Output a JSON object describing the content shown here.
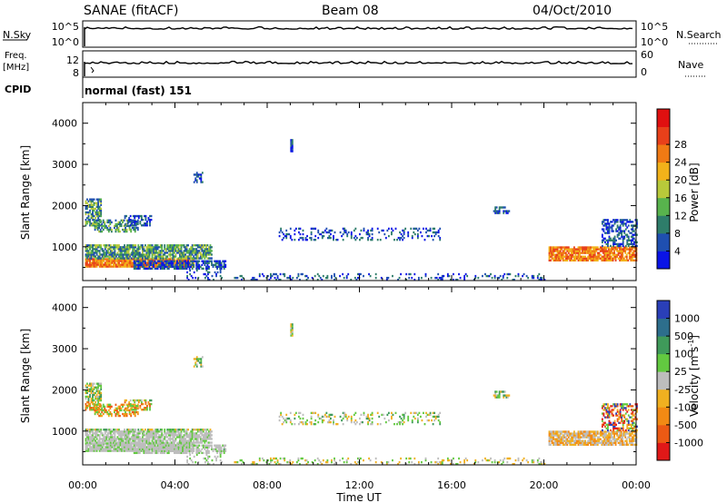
{
  "header": {
    "title": "SANAE (fitACF)",
    "beam": "Beam 08",
    "date": "04/Oct/2010"
  },
  "top_panels": {
    "nsky": {
      "label": "N.Sky",
      "ticks": [
        "10^5",
        "10^0"
      ]
    },
    "nsearch": {
      "label": "N.Search",
      "ticks": [
        "10^5",
        "10^0"
      ]
    },
    "freq": {
      "label_line1": "Freq.",
      "label_line2": "[MHz]",
      "ticks": [
        "12",
        "8"
      ]
    },
    "nave": {
      "label": "Nave",
      "ticks": [
        "60",
        "0"
      ]
    },
    "cpid": {
      "label": "CPID",
      "value": "normal (fast) 151"
    }
  },
  "x_axis": {
    "title": "Time UT",
    "ticks": [
      "00:00",
      "04:00",
      "08:00",
      "12:00",
      "16:00",
      "20:00",
      "00:00"
    ]
  },
  "chart_data": [
    {
      "type": "heatmap",
      "name": "power",
      "xlabel": "Time UT",
      "ylabel": "Slant Range [km]",
      "y_ticks": [
        "1000",
        "2000",
        "3000",
        "4000"
      ],
      "ylim": [
        180,
        4500
      ],
      "xlim_hours": [
        0,
        24
      ],
      "colorbar": {
        "title": "Power [dB]",
        "ticks": [
          "4",
          "8",
          "12",
          "16",
          "20",
          "24",
          "28"
        ],
        "colors": [
          "#0a14e6",
          "#1f4fb0",
          "#2e7d6a",
          "#58b34d",
          "#b8c93a",
          "#f2b21a",
          "#f07a14",
          "#e8401a",
          "#e01010"
        ]
      }
    },
    {
      "type": "heatmap",
      "name": "velocity",
      "xlabel": "Time UT",
      "ylabel": "Slant Range [km]",
      "y_ticks": [
        "1000",
        "2000",
        "3000",
        "4000"
      ],
      "ylim": [
        180,
        4500
      ],
      "xlim_hours": [
        0,
        24
      ],
      "colorbar": {
        "title": "Velocity [m s",
        "title_sup": "-1",
        "title_end": "]",
        "ticks": [
          "1000",
          "500",
          "100",
          "25",
          "-25",
          "-100",
          "-500",
          "-1000"
        ],
        "colors": [
          "#2a3fb8",
          "#2d6e8c",
          "#3f9a5a",
          "#62c940",
          "#bdbdbd",
          "#f0b020",
          "#f28a14",
          "#ec5a14",
          "#e01818"
        ]
      }
    }
  ]
}
